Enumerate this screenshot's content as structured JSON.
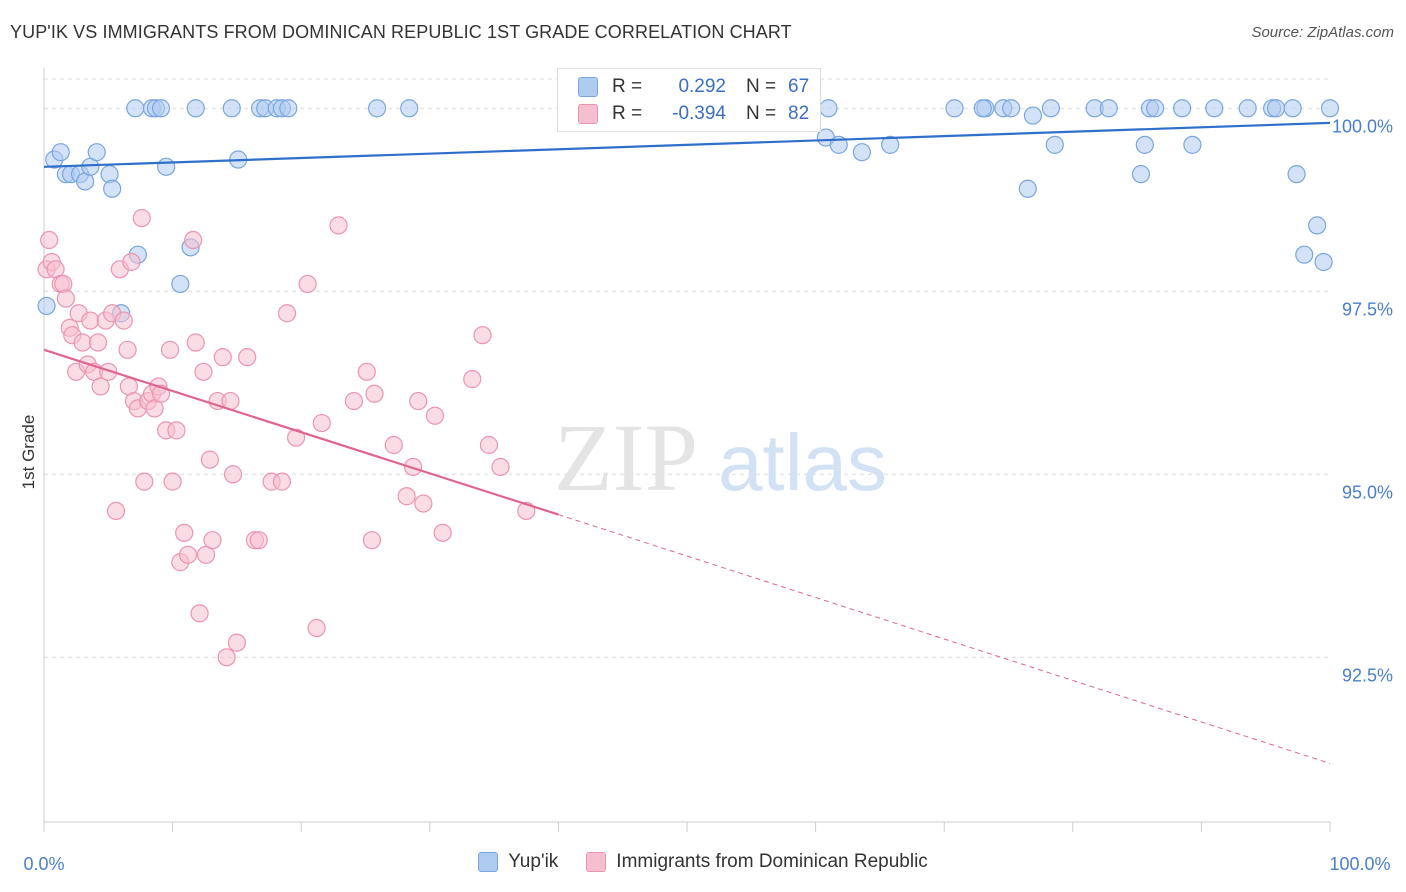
{
  "title": "YUP'IK VS IMMIGRANTS FROM DOMINICAN REPUBLIC 1ST GRADE CORRELATION CHART",
  "source": "Source: ZipAtlas.com",
  "watermark": {
    "zip": "ZIP",
    "atlas": "atlas"
  },
  "colors": {
    "blue_fill": "#aecbf0",
    "blue_stroke": "#7aa6df",
    "blue_line": "#2f6fcc",
    "pink_fill": "#f6bfd0",
    "pink_stroke": "#ec94b2",
    "pink_line": "#e06492",
    "axis_text": "#4a7fcf",
    "grid": "#dcdcdc"
  },
  "legend": {
    "rows": [
      {
        "r_label": "R =",
        "r_value": "0.292",
        "n_label": "N =",
        "n_value": "67"
      },
      {
        "r_label": "R =",
        "r_value": "-0.394",
        "n_label": "N =",
        "n_value": "82"
      }
    ]
  },
  "bottom_legend": [
    "Yup'ik",
    "Immigrants from Dominican Republic"
  ],
  "chart_data": {
    "type": "scatter",
    "title": "YUP'IK VS IMMIGRANTS FROM DOMINICAN REPUBLIC 1ST GRADE CORRELATION CHART",
    "xlabel": "",
    "ylabel": "1st Grade",
    "xlim": [
      0,
      100
    ],
    "ylim": [
      90.25,
      100.55
    ],
    "x_tick_labels": [
      "0.0%",
      "100.0%"
    ],
    "y_ticks": [
      92.5,
      95.0,
      97.5,
      100.0
    ],
    "y_tick_labels": [
      "92.5%",
      "95.0%",
      "97.5%",
      "100.0%"
    ],
    "grid": "horizontal dashed",
    "legend_position": "top-center",
    "series": [
      {
        "name": "Yup'ik",
        "r": 0.292,
        "n": 67,
        "trend": {
          "x": [
            0,
            100
          ],
          "y": [
            99.2,
            99.8
          ]
        },
        "points": [
          [
            0.2,
            97.3
          ],
          [
            0.8,
            99.3
          ],
          [
            1.3,
            99.4
          ],
          [
            1.7,
            99.1
          ],
          [
            2.1,
            99.1
          ],
          [
            2.8,
            99.1
          ],
          [
            3.2,
            99.0
          ],
          [
            3.6,
            99.2
          ],
          [
            4.1,
            99.4
          ],
          [
            5.1,
            99.1
          ],
          [
            5.3,
            98.9
          ],
          [
            6.0,
            97.2
          ],
          [
            7.1,
            100.0
          ],
          [
            7.3,
            98.0
          ],
          [
            8.4,
            100.0
          ],
          [
            8.7,
            100.0
          ],
          [
            9.1,
            100.0
          ],
          [
            9.5,
            99.2
          ],
          [
            10.6,
            97.6
          ],
          [
            11.4,
            98.1
          ],
          [
            11.8,
            100.0
          ],
          [
            14.6,
            100.0
          ],
          [
            15.1,
            99.3
          ],
          [
            16.8,
            100.0
          ],
          [
            17.2,
            100.0
          ],
          [
            18.1,
            100.0
          ],
          [
            18.5,
            100.0
          ],
          [
            19.0,
            100.0
          ],
          [
            25.9,
            100.0
          ],
          [
            28.4,
            100.0
          ],
          [
            41.2,
            100.0
          ],
          [
            43.5,
            100.0
          ],
          [
            45.1,
            100.0
          ],
          [
            48.8,
            100.0
          ],
          [
            52.1,
            100.0
          ],
          [
            60.8,
            99.6
          ],
          [
            61.0,
            100.0
          ],
          [
            61.8,
            99.5
          ],
          [
            63.6,
            99.4
          ],
          [
            65.8,
            99.5
          ],
          [
            70.8,
            100.0
          ],
          [
            73.2,
            100.0
          ],
          [
            74.6,
            100.0
          ],
          [
            75.2,
            100.0
          ],
          [
            73.0,
            100.0
          ],
          [
            78.3,
            100.0
          ],
          [
            76.9,
            99.9
          ],
          [
            76.5,
            98.9
          ],
          [
            78.6,
            99.5
          ],
          [
            81.7,
            100.0
          ],
          [
            82.8,
            100.0
          ],
          [
            85.3,
            99.1
          ],
          [
            85.6,
            99.5
          ],
          [
            86.0,
            100.0
          ],
          [
            86.4,
            100.0
          ],
          [
            88.5,
            100.0
          ],
          [
            89.3,
            99.5
          ],
          [
            91.0,
            100.0
          ],
          [
            93.6,
            100.0
          ],
          [
            95.5,
            100.0
          ],
          [
            95.8,
            100.0
          ],
          [
            97.1,
            100.0
          ],
          [
            97.4,
            99.1
          ],
          [
            98.0,
            98.0
          ],
          [
            99.0,
            98.4
          ],
          [
            99.5,
            97.9
          ],
          [
            100.0,
            100.0
          ]
        ]
      },
      {
        "name": "Immigrants from Dominican Republic",
        "r": -0.394,
        "n": 82,
        "trend": {
          "x": [
            0,
            40
          ],
          "y": [
            96.7,
            94.45
          ]
        },
        "trend_extension": {
          "x": [
            40,
            100
          ],
          "y": [
            94.45,
            91.05
          ]
        },
        "points": [
          [
            0.2,
            97.8
          ],
          [
            0.4,
            98.2
          ],
          [
            0.6,
            97.9
          ],
          [
            0.9,
            97.8
          ],
          [
            1.3,
            97.6
          ],
          [
            1.5,
            97.6
          ],
          [
            1.7,
            97.4
          ],
          [
            2.0,
            97.0
          ],
          [
            2.2,
            96.9
          ],
          [
            2.5,
            96.4
          ],
          [
            2.7,
            97.2
          ],
          [
            3.0,
            96.8
          ],
          [
            3.4,
            96.5
          ],
          [
            3.6,
            97.1
          ],
          [
            3.9,
            96.4
          ],
          [
            4.2,
            96.8
          ],
          [
            4.4,
            96.2
          ],
          [
            4.8,
            97.1
          ],
          [
            5.0,
            96.4
          ],
          [
            5.3,
            97.2
          ],
          [
            5.6,
            94.5
          ],
          [
            5.9,
            97.8
          ],
          [
            6.2,
            97.1
          ],
          [
            6.5,
            96.7
          ],
          [
            6.6,
            96.2
          ],
          [
            6.8,
            97.9
          ],
          [
            7.0,
            96.0
          ],
          [
            7.3,
            95.9
          ],
          [
            7.6,
            98.5
          ],
          [
            7.8,
            94.9
          ],
          [
            8.1,
            96.0
          ],
          [
            8.4,
            96.1
          ],
          [
            8.6,
            95.9
          ],
          [
            8.9,
            96.2
          ],
          [
            9.1,
            96.1
          ],
          [
            9.5,
            95.6
          ],
          [
            9.8,
            96.7
          ],
          [
            10.0,
            94.9
          ],
          [
            10.3,
            95.6
          ],
          [
            10.6,
            93.8
          ],
          [
            10.9,
            94.2
          ],
          [
            11.2,
            93.9
          ],
          [
            11.6,
            98.2
          ],
          [
            11.8,
            96.8
          ],
          [
            12.1,
            93.1
          ],
          [
            12.4,
            96.4
          ],
          [
            12.6,
            93.9
          ],
          [
            12.9,
            95.2
          ],
          [
            13.1,
            94.1
          ],
          [
            13.5,
            96.0
          ],
          [
            13.9,
            96.6
          ],
          [
            14.2,
            92.5
          ],
          [
            14.5,
            96.0
          ],
          [
            14.7,
            95.0
          ],
          [
            15.0,
            92.7
          ],
          [
            15.8,
            96.6
          ],
          [
            16.4,
            94.1
          ],
          [
            16.7,
            94.1
          ],
          [
            17.7,
            94.9
          ],
          [
            18.5,
            94.9
          ],
          [
            18.9,
            97.2
          ],
          [
            19.6,
            95.5
          ],
          [
            20.5,
            97.6
          ],
          [
            21.2,
            92.9
          ],
          [
            21.6,
            95.7
          ],
          [
            22.9,
            98.4
          ],
          [
            24.1,
            96.0
          ],
          [
            25.1,
            96.4
          ],
          [
            25.5,
            94.1
          ],
          [
            25.7,
            96.1
          ],
          [
            27.2,
            95.4
          ],
          [
            28.2,
            94.7
          ],
          [
            28.7,
            95.1
          ],
          [
            29.1,
            96.0
          ],
          [
            29.5,
            94.6
          ],
          [
            30.4,
            95.8
          ],
          [
            31.0,
            94.2
          ],
          [
            33.3,
            96.3
          ],
          [
            34.1,
            96.9
          ],
          [
            34.6,
            95.4
          ],
          [
            35.5,
            95.1
          ],
          [
            37.5,
            94.5
          ]
        ]
      }
    ]
  }
}
